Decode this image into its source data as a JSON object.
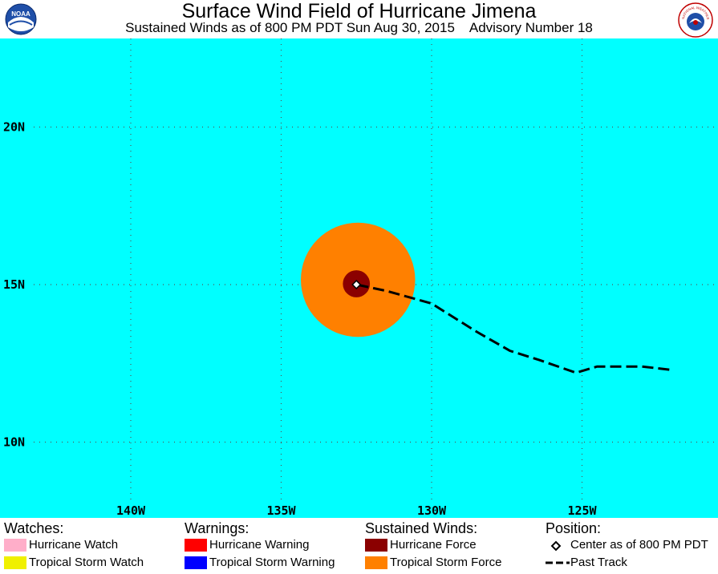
{
  "header": {
    "title": "Surface Wind Field of Hurricane Jimena",
    "subtitle": "Sustained Winds as of 800 PM PDT Sun Aug 30, 2015    Advisory Number 18",
    "logo_left_text": "NOAA",
    "logo_right_text": "NATIONAL WEATHER SERVICE"
  },
  "map": {
    "ocean_color": "#00ffff",
    "lon_labels": [
      "140W",
      "135W",
      "130W",
      "125W"
    ],
    "lat_labels": [
      "20N",
      "15N",
      "10N"
    ],
    "storm_center": {
      "lon": -132.5,
      "lat": 15.0
    },
    "tropical_storm_radius_deg": 1.9,
    "hurricane_radius_deg": 0.45,
    "past_track": [
      {
        "lon": -122.1,
        "lat": 12.3
      },
      {
        "lon": -123.0,
        "lat": 12.4
      },
      {
        "lon": -124.5,
        "lat": 12.4
      },
      {
        "lon": -125.2,
        "lat": 12.2
      },
      {
        "lon": -126.4,
        "lat": 12.6
      },
      {
        "lon": -127.4,
        "lat": 12.9
      },
      {
        "lon": -128.5,
        "lat": 13.5
      },
      {
        "lon": -130.0,
        "lat": 14.4
      },
      {
        "lon": -131.5,
        "lat": 14.8
      },
      {
        "lon": -132.5,
        "lat": 15.0
      }
    ]
  },
  "legend": {
    "watches": {
      "heading": "Watches:",
      "items": [
        {
          "label": "Hurricane Watch",
          "color": "#ffaec9"
        },
        {
          "label": "Tropical Storm Watch",
          "color": "#f0f000"
        }
      ]
    },
    "warnings": {
      "heading": "Warnings:",
      "items": [
        {
          "label": "Hurricane Warning",
          "color": "#ff0000"
        },
        {
          "label": "Tropical Storm Warning",
          "color": "#0000ff"
        }
      ]
    },
    "winds": {
      "heading": "Sustained Winds:",
      "items": [
        {
          "label": "Hurricane Force",
          "color": "#8b0000"
        },
        {
          "label": "Tropical Storm Force",
          "color": "#ff8000"
        }
      ]
    },
    "position": {
      "heading": "Position:",
      "items": [
        {
          "label": "Center as of 800 PM PDT"
        },
        {
          "label": "Past Track"
        }
      ]
    }
  }
}
